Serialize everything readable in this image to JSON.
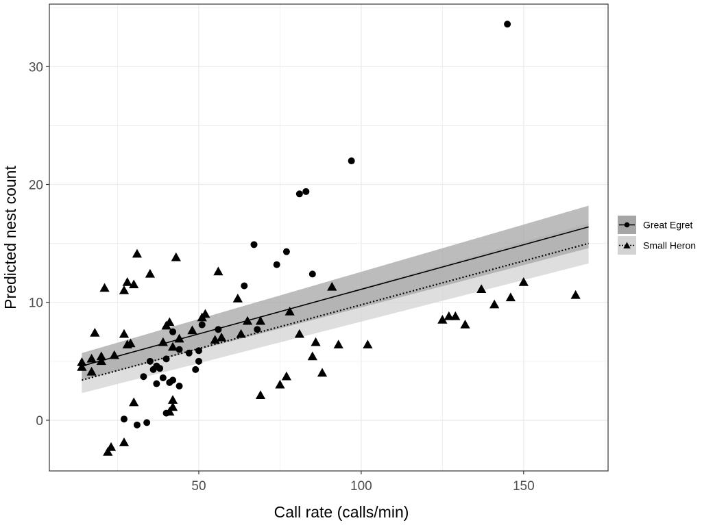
{
  "chart_data": {
    "type": "scatter",
    "title": "",
    "xlabel": "Call rate (calls/min)",
    "ylabel": "Predicted nest count",
    "xlim": [
      4,
      176
    ],
    "ylim": [
      -4.3,
      35.3
    ],
    "x_ticks": [
      50,
      100,
      150
    ],
    "y_ticks": [
      0,
      10,
      20,
      30
    ],
    "x_tick_labels": [
      "50",
      "100",
      "150"
    ],
    "y_tick_labels": [
      "0",
      "10",
      "20",
      "30"
    ],
    "grid": true,
    "legend_position": "right",
    "series": [
      {
        "name": "Great Egret",
        "marker": "circle",
        "line_style": "solid",
        "color": "#000000",
        "band_color": "#a6a6a6",
        "fit": {
          "x": [
            14,
            170
          ],
          "y": [
            4.6,
            16.4
          ]
        },
        "ci_lower": [
          3.4,
          14.6
        ],
        "ci_upper": [
          5.7,
          18.2
        ],
        "points": [
          {
            "x": 27,
            "y": 0.1
          },
          {
            "x": 31,
            "y": -0.4
          },
          {
            "x": 34,
            "y": -0.2
          },
          {
            "x": 33,
            "y": 3.7
          },
          {
            "x": 35,
            "y": 5.0
          },
          {
            "x": 36,
            "y": 4.3
          },
          {
            "x": 37,
            "y": 4.6
          },
          {
            "x": 38,
            "y": 4.4
          },
          {
            "x": 37,
            "y": 3.1
          },
          {
            "x": 39,
            "y": 3.6
          },
          {
            "x": 40,
            "y": 5.2
          },
          {
            "x": 41,
            "y": 3.2
          },
          {
            "x": 42,
            "y": 3.4
          },
          {
            "x": 40,
            "y": 0.6
          },
          {
            "x": 42,
            "y": 7.5
          },
          {
            "x": 44,
            "y": 6.0
          },
          {
            "x": 44,
            "y": 2.9
          },
          {
            "x": 47,
            "y": 5.7
          },
          {
            "x": 49,
            "y": 4.3
          },
          {
            "x": 50,
            "y": 5.9
          },
          {
            "x": 50,
            "y": 5.0
          },
          {
            "x": 51,
            "y": 8.1
          },
          {
            "x": 56,
            "y": 7.7
          },
          {
            "x": 64,
            "y": 11.4
          },
          {
            "x": 67,
            "y": 14.9
          },
          {
            "x": 68,
            "y": 7.7
          },
          {
            "x": 74,
            "y": 13.2
          },
          {
            "x": 77,
            "y": 14.3
          },
          {
            "x": 81,
            "y": 19.2
          },
          {
            "x": 83,
            "y": 19.4
          },
          {
            "x": 85,
            "y": 12.4
          },
          {
            "x": 97,
            "y": 22.0
          },
          {
            "x": 145,
            "y": 33.6
          }
        ]
      },
      {
        "name": "Small Heron",
        "marker": "triangle",
        "line_style": "dotted",
        "color": "#000000",
        "band_color": "#d3d3d3",
        "fit": {
          "x": [
            14,
            170
          ],
          "y": [
            3.4,
            15.0
          ]
        },
        "ci_lower": [
          2.3,
          13.3
        ],
        "ci_upper": [
          4.5,
          16.7
        ],
        "points": [
          {
            "x": 14,
            "y": 4.5
          },
          {
            "x": 14,
            "y": 4.9
          },
          {
            "x": 17,
            "y": 4.1
          },
          {
            "x": 17,
            "y": 5.2
          },
          {
            "x": 18,
            "y": 7.4
          },
          {
            "x": 20,
            "y": 5.0
          },
          {
            "x": 20,
            "y": 5.4
          },
          {
            "x": 21,
            "y": 11.2
          },
          {
            "x": 22,
            "y": -2.7
          },
          {
            "x": 23,
            "y": -2.3
          },
          {
            "x": 24,
            "y": 5.5
          },
          {
            "x": 27,
            "y": -1.9
          },
          {
            "x": 27,
            "y": 7.3
          },
          {
            "x": 27,
            "y": 11.0
          },
          {
            "x": 28,
            "y": 6.4
          },
          {
            "x": 28,
            "y": 11.7
          },
          {
            "x": 29,
            "y": 6.5
          },
          {
            "x": 30,
            "y": 1.5
          },
          {
            "x": 30,
            "y": 11.5
          },
          {
            "x": 31,
            "y": 14.1
          },
          {
            "x": 35,
            "y": 12.4
          },
          {
            "x": 39,
            "y": 6.6
          },
          {
            "x": 40,
            "y": 8.0
          },
          {
            "x": 41,
            "y": 8.3
          },
          {
            "x": 41,
            "y": 0.7
          },
          {
            "x": 42,
            "y": 1.1
          },
          {
            "x": 42,
            "y": 1.7
          },
          {
            "x": 42,
            "y": 6.2
          },
          {
            "x": 43,
            "y": 13.8
          },
          {
            "x": 44,
            "y": 6.9
          },
          {
            "x": 48,
            "y": 7.6
          },
          {
            "x": 51,
            "y": 8.7
          },
          {
            "x": 52,
            "y": 9.0
          },
          {
            "x": 55,
            "y": 6.8
          },
          {
            "x": 56,
            "y": 12.6
          },
          {
            "x": 57,
            "y": 7.0
          },
          {
            "x": 62,
            "y": 10.3
          },
          {
            "x": 63,
            "y": 7.3
          },
          {
            "x": 65,
            "y": 8.4
          },
          {
            "x": 69,
            "y": 8.4
          },
          {
            "x": 69,
            "y": 2.1
          },
          {
            "x": 75,
            "y": 3.0
          },
          {
            "x": 77,
            "y": 3.7
          },
          {
            "x": 78,
            "y": 9.2
          },
          {
            "x": 81,
            "y": 7.3
          },
          {
            "x": 85,
            "y": 5.4
          },
          {
            "x": 86,
            "y": 6.6
          },
          {
            "x": 88,
            "y": 4.0
          },
          {
            "x": 91,
            "y": 11.3
          },
          {
            "x": 93,
            "y": 6.4
          },
          {
            "x": 102,
            "y": 6.4
          },
          {
            "x": 125,
            "y": 8.5
          },
          {
            "x": 127,
            "y": 8.8
          },
          {
            "x": 129,
            "y": 8.8
          },
          {
            "x": 132,
            "y": 8.1
          },
          {
            "x": 137,
            "y": 11.1
          },
          {
            "x": 141,
            "y": 9.8
          },
          {
            "x": 146,
            "y": 10.4
          },
          {
            "x": 150,
            "y": 11.7
          },
          {
            "x": 166,
            "y": 10.6
          }
        ]
      }
    ]
  }
}
